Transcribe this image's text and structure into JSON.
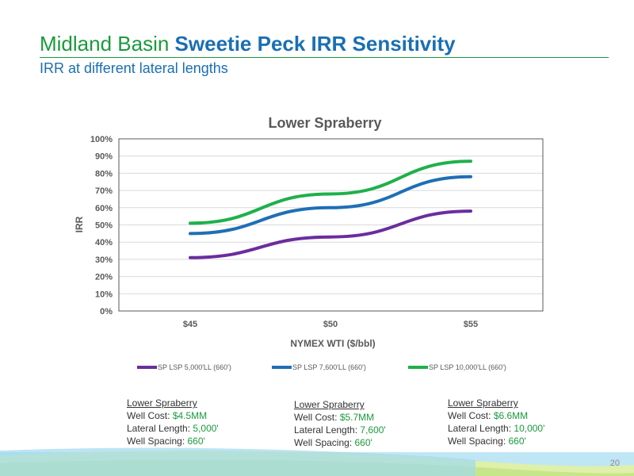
{
  "header": {
    "title_plain": "Midland Basin",
    "title_bold": "Sweetie Peck IRR Sensitivity",
    "subtitle": "IRR at different lateral lengths"
  },
  "colors": {
    "brand_green": "#1a9a3c",
    "brand_blue": "#1a6fb3"
  },
  "chart_data": {
    "type": "line",
    "title": "Lower Spraberry",
    "xlabel": "NYMEX WTI ($/bbl)",
    "ylabel": "IRR",
    "categories": [
      "$45",
      "$50",
      "$55"
    ],
    "y_ticks": [
      "0%",
      "10%",
      "20%",
      "30%",
      "40%",
      "50%",
      "60%",
      "70%",
      "80%",
      "90%",
      "100%"
    ],
    "ylim": [
      0,
      100
    ],
    "grid": true,
    "legend_position": "bottom",
    "series": [
      {
        "name": "SP LSP 5,000'LL (660')",
        "values": [
          31,
          43,
          58
        ],
        "color": "#6b2d9e"
      },
      {
        "name": "SP LSP 7,600'LL (660')",
        "values": [
          45,
          60,
          78
        ],
        "color": "#1f6fb5"
      },
      {
        "name": "SP LSP 10,000'LL (660')",
        "values": [
          51,
          68,
          87
        ],
        "color": "#1fb04b"
      }
    ]
  },
  "wells": [
    {
      "header": "Lower Spraberry",
      "cost_label": "Well Cost:",
      "cost": "$4.5MM",
      "lateral_label": "Lateral Length:",
      "lateral": "5,000'",
      "spacing_label": "Well Spacing:",
      "spacing": "660'"
    },
    {
      "header": "Lower Spraberry",
      "cost_label": "Well Cost:",
      "cost": "$5.7MM",
      "lateral_label": "Lateral Length:",
      "lateral": "7,600'",
      "spacing_label": "Well Spacing:",
      "spacing": "660'"
    },
    {
      "header": "Lower Spraberry",
      "cost_label": "Well Cost:",
      "cost": "$6.6MM",
      "lateral_label": "Lateral Length:",
      "lateral": "10,000'",
      "spacing_label": "Well Spacing:",
      "spacing": "660'"
    }
  ],
  "footer": {
    "page_number": "20"
  }
}
